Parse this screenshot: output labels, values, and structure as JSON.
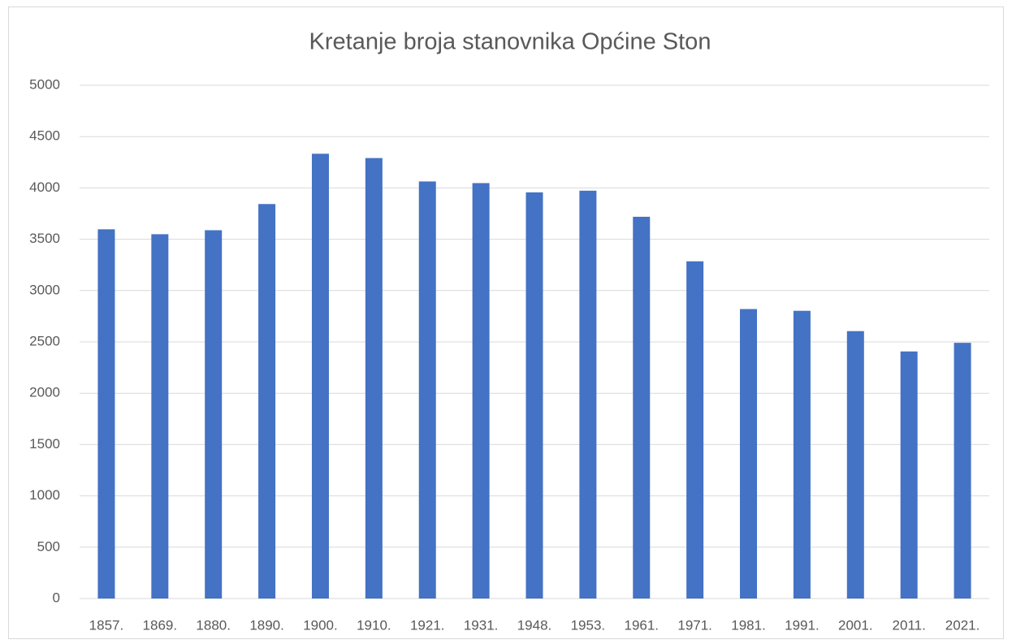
{
  "chart_data": {
    "type": "bar",
    "title": "Kretanje broja stanovnika Općine Ston",
    "categories": [
      "1857.",
      "1869.",
      "1880.",
      "1890.",
      "1900.",
      "1910.",
      "1921.",
      "1931.",
      "1948.",
      "1953.",
      "1961.",
      "1971.",
      "1981.",
      "1991.",
      "2001.",
      "2011.",
      "2021."
    ],
    "values": [
      3597,
      3549,
      3588,
      3843,
      4333,
      4291,
      4063,
      4047,
      3957,
      3973,
      3719,
      3285,
      2820,
      2803,
      2605,
      2407,
      2491
    ],
    "color": "#4472c4",
    "ylim": [
      0,
      5000
    ],
    "yticks": [
      0,
      500,
      1000,
      1500,
      2000,
      2500,
      3000,
      3500,
      4000,
      4500,
      5000
    ],
    "grid": true
  }
}
